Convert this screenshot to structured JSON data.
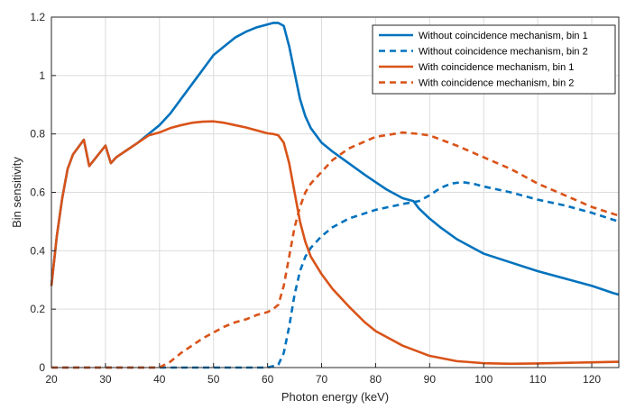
{
  "chart_data": {
    "type": "line",
    "title": "",
    "xlabel": "Photon energy (keV)",
    "ylabel": "Bin sensitivity",
    "xlim": [
      20,
      125
    ],
    "ylim": [
      0,
      1.2
    ],
    "x_ticks": [
      20,
      30,
      40,
      50,
      60,
      70,
      80,
      90,
      100,
      110,
      120
    ],
    "y_ticks": [
      0,
      0.2,
      0.4,
      0.6,
      0.8,
      1,
      1.2
    ],
    "x_tick_labels": [
      "20",
      "30",
      "40",
      "50",
      "60",
      "70",
      "80",
      "90",
      "100",
      "110",
      "120"
    ],
    "y_tick_labels": [
      "0",
      "0.2",
      "0.4",
      "0.6",
      "0.8",
      "1",
      "1.2"
    ],
    "grid": true,
    "legend_position": "top-right",
    "series": [
      {
        "name": "Without coincidence mechanism, bin 1",
        "color": "#0072BD",
        "dash": "solid",
        "x": [
          20,
          21,
          22,
          23,
          24,
          26,
          27,
          30,
          31,
          32,
          34,
          36,
          38,
          40,
          42,
          44,
          46,
          48,
          50,
          52,
          54,
          56,
          58,
          60,
          61,
          62,
          63,
          64,
          65,
          66,
          67,
          68,
          70,
          72,
          75,
          78,
          80,
          82,
          85,
          87,
          88,
          90,
          92,
          95,
          98,
          100,
          105,
          110,
          115,
          120,
          124,
          125
        ],
        "y": [
          0.28,
          0.45,
          0.58,
          0.68,
          0.73,
          0.78,
          0.69,
          0.76,
          0.7,
          0.72,
          0.745,
          0.77,
          0.8,
          0.83,
          0.87,
          0.92,
          0.97,
          1.02,
          1.07,
          1.1,
          1.13,
          1.15,
          1.165,
          1.175,
          1.18,
          1.18,
          1.17,
          1.1,
          1.01,
          0.92,
          0.86,
          0.82,
          0.77,
          0.74,
          0.7,
          0.66,
          0.635,
          0.61,
          0.58,
          0.57,
          0.545,
          0.51,
          0.48,
          0.44,
          0.41,
          0.39,
          0.36,
          0.33,
          0.305,
          0.28,
          0.255,
          0.25
        ]
      },
      {
        "name": "Without coincidence mechanism, bin 2",
        "color": "#0072BD",
        "dash": "dashed",
        "x": [
          20,
          60,
          62,
          63,
          64,
          65,
          66,
          67,
          68,
          70,
          72,
          75,
          80,
          85,
          88,
          90,
          92,
          94,
          96,
          98,
          100,
          105,
          110,
          115,
          120,
          125
        ],
        "y": [
          0,
          0,
          0.01,
          0.05,
          0.14,
          0.25,
          0.33,
          0.38,
          0.41,
          0.45,
          0.48,
          0.51,
          0.54,
          0.56,
          0.57,
          0.59,
          0.615,
          0.63,
          0.635,
          0.63,
          0.62,
          0.6,
          0.575,
          0.555,
          0.53,
          0.5
        ]
      },
      {
        "name": "With coincidence mechanism, bin 1",
        "color": "#D95319",
        "dash": "solid",
        "x": [
          20,
          21,
          22,
          23,
          24,
          26,
          27,
          30,
          31,
          32,
          34,
          36,
          38,
          40,
          42,
          44,
          46,
          48,
          50,
          52,
          54,
          56,
          58,
          60,
          61,
          62,
          63,
          64,
          65,
          66,
          67,
          68,
          70,
          72,
          75,
          78,
          80,
          85,
          90,
          95,
          100,
          105,
          110,
          115,
          120,
          125
        ],
        "y": [
          0.28,
          0.45,
          0.58,
          0.68,
          0.73,
          0.78,
          0.69,
          0.76,
          0.7,
          0.72,
          0.745,
          0.77,
          0.795,
          0.805,
          0.82,
          0.83,
          0.838,
          0.842,
          0.843,
          0.838,
          0.83,
          0.822,
          0.812,
          0.802,
          0.8,
          0.795,
          0.77,
          0.7,
          0.6,
          0.5,
          0.43,
          0.38,
          0.32,
          0.27,
          0.21,
          0.155,
          0.125,
          0.075,
          0.04,
          0.022,
          0.015,
          0.013,
          0.014,
          0.016,
          0.018,
          0.02
        ]
      },
      {
        "name": "With coincidence mechanism, bin 2",
        "color": "#D95319",
        "dash": "dashed",
        "x": [
          20,
          40,
          42,
          44,
          46,
          48,
          50,
          52,
          54,
          56,
          58,
          60,
          61,
          62,
          63,
          64,
          65,
          66,
          67,
          68,
          70,
          72,
          75,
          80,
          85,
          88,
          90,
          95,
          100,
          105,
          110,
          115,
          120,
          125
        ],
        "y": [
          0,
          0,
          0.02,
          0.05,
          0.075,
          0.1,
          0.12,
          0.14,
          0.155,
          0.165,
          0.18,
          0.19,
          0.2,
          0.215,
          0.28,
          0.38,
          0.48,
          0.55,
          0.6,
          0.63,
          0.67,
          0.71,
          0.75,
          0.79,
          0.805,
          0.8,
          0.795,
          0.76,
          0.72,
          0.68,
          0.63,
          0.59,
          0.55,
          0.52
        ]
      }
    ]
  }
}
